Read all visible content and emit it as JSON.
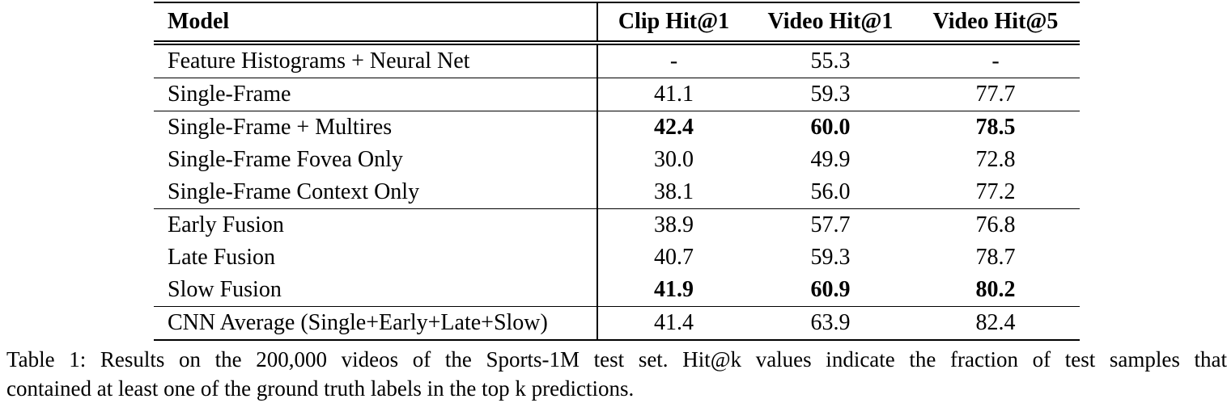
{
  "table": {
    "headers": [
      "Model",
      "Clip Hit@1",
      "Video Hit@1",
      "Video Hit@5"
    ],
    "rows": [
      {
        "model": "Feature Histograms + Neural Net",
        "clip_hit1": "-",
        "video_hit1": "55.3",
        "video_hit5": "-",
        "bold": false
      },
      {
        "model": "Single-Frame",
        "clip_hit1": "41.1",
        "video_hit1": "59.3",
        "video_hit5": "77.7",
        "bold": false
      },
      {
        "model": "Single-Frame + Multires",
        "clip_hit1": "42.4",
        "video_hit1": "60.0",
        "video_hit5": "78.5",
        "bold": true
      },
      {
        "model": "Single-Frame Fovea Only",
        "clip_hit1": "30.0",
        "video_hit1": "49.9",
        "video_hit5": "72.8",
        "bold": false
      },
      {
        "model": "Single-Frame Context Only",
        "clip_hit1": "38.1",
        "video_hit1": "56.0",
        "video_hit5": "77.2",
        "bold": false
      },
      {
        "model": "Early Fusion",
        "clip_hit1": "38.9",
        "video_hit1": "57.7",
        "video_hit5": "76.8",
        "bold": false
      },
      {
        "model": "Late Fusion",
        "clip_hit1": "40.7",
        "video_hit1": "59.3",
        "video_hit5": "78.7",
        "bold": false
      },
      {
        "model": "Slow Fusion",
        "clip_hit1": "41.9",
        "video_hit1": "60.9",
        "video_hit5": "80.2",
        "bold": true
      },
      {
        "model": "CNN Average (Single+Early+Late+Slow)",
        "clip_hit1": "41.4",
        "video_hit1": "63.9",
        "video_hit5": "82.4",
        "bold": false
      }
    ]
  },
  "caption": {
    "line1": "Table 1: Results on the 200,000 videos of the Sports-1M test set.  Hit@k values indicate the fraction of test samples that",
    "line2": "contained at least one of the ground truth labels in the top k predictions."
  }
}
